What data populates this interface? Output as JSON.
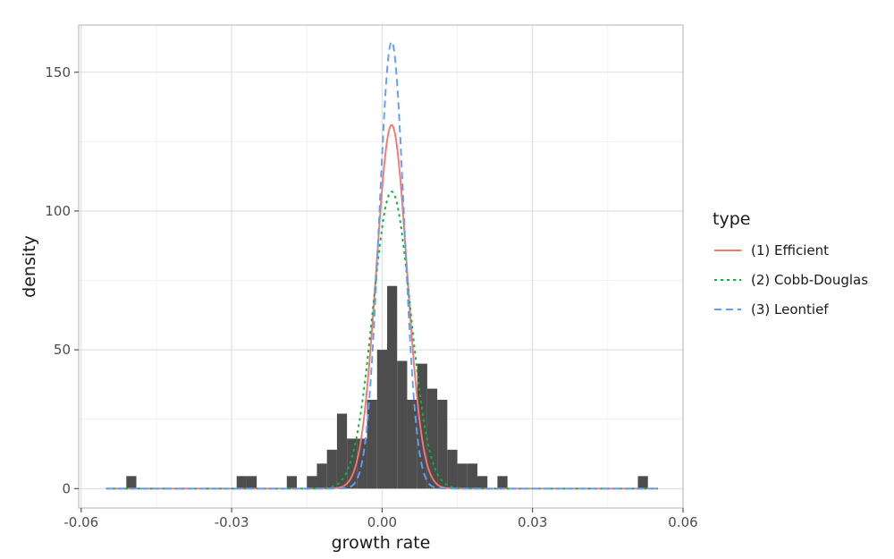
{
  "chart_data": {
    "type": "histogram+density",
    "title": "",
    "xlabel": "growth rate",
    "ylabel": "density",
    "xlim": [
      -0.0605,
      0.06
    ],
    "ylim": [
      -7,
      167
    ],
    "x_ticks": [
      -0.06,
      -0.03,
      0.0,
      0.03,
      0.06
    ],
    "x_tick_labels": [
      "-0.06",
      "-0.03",
      "0.00",
      "0.03",
      "0.06"
    ],
    "y_ticks": [
      0,
      50,
      100,
      150
    ],
    "y_tick_labels": [
      "0",
      "50",
      "100",
      "150"
    ],
    "grid": true,
    "legend": {
      "title": "type",
      "position": "right",
      "entries": [
        {
          "label": "(1) Efficient",
          "color": "#F8766D",
          "dash": "solid"
        },
        {
          "label": "(2) Cobb-Douglas",
          "color": "#00BA38",
          "dash": "dotted"
        },
        {
          "label": "(3) Leontief",
          "color": "#619CFF",
          "dash": "dashed"
        }
      ]
    },
    "histogram": {
      "color": "#4d4d4d",
      "bin_width": 0.002,
      "bins": [
        {
          "x0": -0.051,
          "height": 4.5
        },
        {
          "x0": -0.029,
          "height": 4.5
        },
        {
          "x0": -0.027,
          "height": 4.5
        },
        {
          "x0": -0.019,
          "height": 4.5
        },
        {
          "x0": -0.015,
          "height": 4.5
        },
        {
          "x0": -0.013,
          "height": 9
        },
        {
          "x0": -0.011,
          "height": 14
        },
        {
          "x0": -0.009,
          "height": 27
        },
        {
          "x0": -0.007,
          "height": 18
        },
        {
          "x0": -0.005,
          "height": 18
        },
        {
          "x0": -0.003,
          "height": 32
        },
        {
          "x0": -0.001,
          "height": 50
        },
        {
          "x0": 0.001,
          "height": 73
        },
        {
          "x0": 0.003,
          "height": 46
        },
        {
          "x0": 0.005,
          "height": 32
        },
        {
          "x0": 0.007,
          "height": 45
        },
        {
          "x0": 0.009,
          "height": 36
        },
        {
          "x0": 0.011,
          "height": 32
        },
        {
          "x0": 0.013,
          "height": 14
        },
        {
          "x0": 0.015,
          "height": 9
        },
        {
          "x0": 0.017,
          "height": 9
        },
        {
          "x0": 0.019,
          "height": 4.5
        },
        {
          "x0": 0.023,
          "height": 4.5
        },
        {
          "x0": 0.051,
          "height": 4.5
        }
      ]
    },
    "series": [
      {
        "name": "(1) Efficient",
        "color": "#F8766D",
        "dash": "solid",
        "x_range": [
          -0.055,
          0.055
        ],
        "mean": 0.0019,
        "peak": 131
      },
      {
        "name": "(2) Cobb-Douglas",
        "color": "#00BA38",
        "dash": "dotted",
        "x_range": [
          -0.055,
          0.055
        ],
        "mean": 0.0019,
        "peak": 107
      },
      {
        "name": "(3) Leontief",
        "color": "#619CFF",
        "dash": "dashed",
        "x_range": [
          -0.055,
          0.055
        ],
        "mean": 0.0019,
        "peak": 161
      }
    ]
  }
}
